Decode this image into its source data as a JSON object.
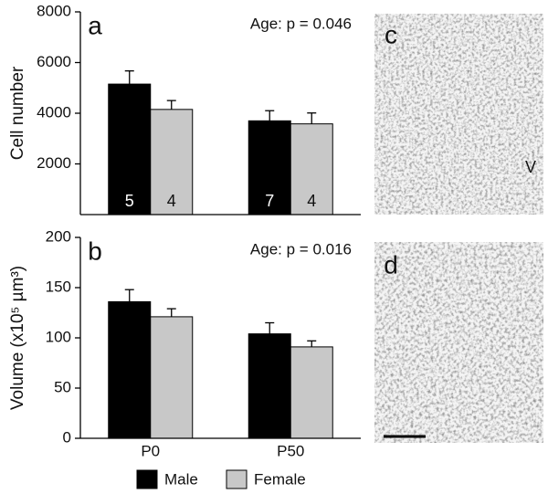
{
  "chart_data": [
    {
      "type": "bar",
      "panel": "a",
      "annotation": "Age: p = 0.046",
      "ylabel": "Cell number",
      "categories": [
        "P0",
        "P50"
      ],
      "ylim": [
        0,
        8000
      ],
      "yticks": [
        2000,
        4000,
        6000,
        8000
      ],
      "series": [
        {
          "color": "#000000",
          "values": [
            5150,
            3700
          ],
          "errors": [
            520,
            400
          ],
          "n": [
            5,
            7
          ]
        },
        {
          "color": "#c8c8c8",
          "values": [
            4150,
            3580
          ],
          "errors": [
            350,
            430
          ],
          "n": [
            4,
            4
          ]
        }
      ]
    },
    {
      "type": "bar",
      "panel": "b",
      "annotation": "Age: p = 0.016",
      "ylabel": "Volume (x10⁵ µm³)",
      "categories": [
        "P0",
        "P50"
      ],
      "ylim": [
        0,
        200
      ],
      "yticks": [
        0,
        50,
        100,
        150,
        200
      ],
      "series": [
        {
          "name": "Male",
          "color": "#000000",
          "values": [
            136,
            104
          ],
          "errors": [
            12,
            11
          ]
        },
        {
          "name": "Female",
          "color": "#c8c8c8",
          "values": [
            121,
            91
          ],
          "errors": [
            8,
            6
          ]
        }
      ]
    }
  ],
  "images": [
    {
      "label": "c",
      "annotation": "V"
    },
    {
      "label": "d"
    }
  ]
}
